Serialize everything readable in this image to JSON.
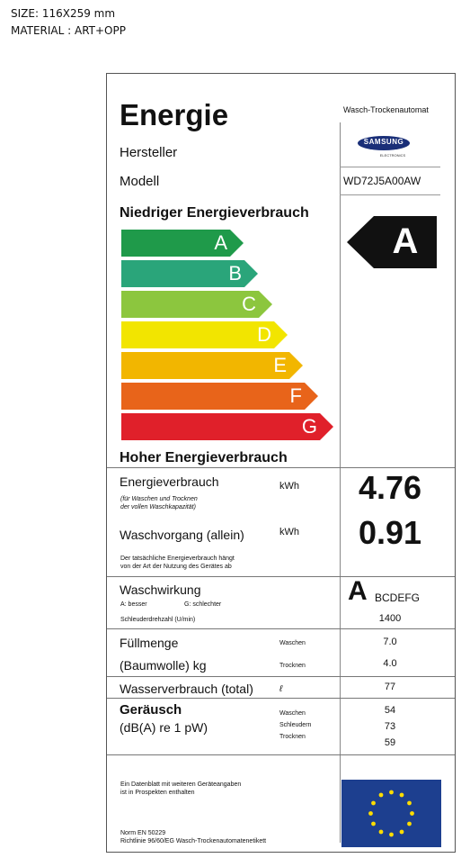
{
  "spec": {
    "size": "SIZE: 116X259 mm",
    "material": "MATERIAL : ART+OPP"
  },
  "header": {
    "title": "Energie",
    "type": "Wasch-Trockenautomat",
    "manufacturer_label": "Hersteller",
    "brand": "SAMSUNG",
    "brand_sub": "ELECTRONICS",
    "model_label": "Modell",
    "model": "WD72J5A00AW"
  },
  "scale": {
    "top_label": "Niedriger Energieverbrauch",
    "bottom_label": "Hoher Energieverbrauch",
    "classes": [
      {
        "letter": "A",
        "color": "#1f9a4a"
      },
      {
        "letter": "B",
        "color": "#2aa57a"
      },
      {
        "letter": "C",
        "color": "#8cc63e"
      },
      {
        "letter": "D",
        "color": "#f2e500"
      },
      {
        "letter": "E",
        "color": "#f2b600"
      },
      {
        "letter": "F",
        "color": "#e8641a"
      },
      {
        "letter": "G",
        "color": "#e0202a"
      }
    ],
    "rating": "A"
  },
  "energy": {
    "label": "Energieverbrauch",
    "note_line1": "(für Waschen und Trocknen",
    "note_line2": "der vollen Waschkapazität)",
    "unit": "kWh",
    "value": "4.76"
  },
  "wash": {
    "label": "Waschvorgang (allein)",
    "unit": "kWh",
    "value": "0.91",
    "note_line1": "Der tatsächliche Energieverbrauch hängt",
    "note_line2": "von der Art der Nutzung des Gerätes ab"
  },
  "performance": {
    "label": "Waschwirkung",
    "best": "A: besser",
    "worst": "G: schlechter",
    "spin_label": "Schleuderdrehzahl (U/min)",
    "class_big": "A",
    "class_rest": "BCDEFG",
    "spin_value": "1400"
  },
  "capacity": {
    "label1": "Füllmenge",
    "label2": "(Baumwolle) kg",
    "wash_label": "Waschen",
    "dry_label": "Trocknen",
    "wash_value": "7.0",
    "dry_value": "4.0"
  },
  "water": {
    "label": "Wasserverbrauch (total)",
    "unit": "ℓ",
    "value": "77"
  },
  "noise": {
    "label": "Geräusch",
    "sub": "(dB(A) re 1 pW)",
    "wash_label": "Waschen",
    "spin_label": "Schleudern",
    "dry_label": "Trocknen",
    "wash_value": "54",
    "spin_value": "73",
    "dry_value": "59"
  },
  "footer": {
    "info_line1": "Ein Datenblatt mit weiteren Geräteangaben",
    "info_line2": "ist in Prospekten enthalten",
    "norm": "Norm EN 50229",
    "directive": "Richtlinie 96/60/EG Wasch-Trockenautomatenetikett"
  },
  "colors": {
    "eu_flag": "#1d3f8f",
    "eu_stars": "#ffdd00",
    "rating_arrow": "#111111"
  }
}
